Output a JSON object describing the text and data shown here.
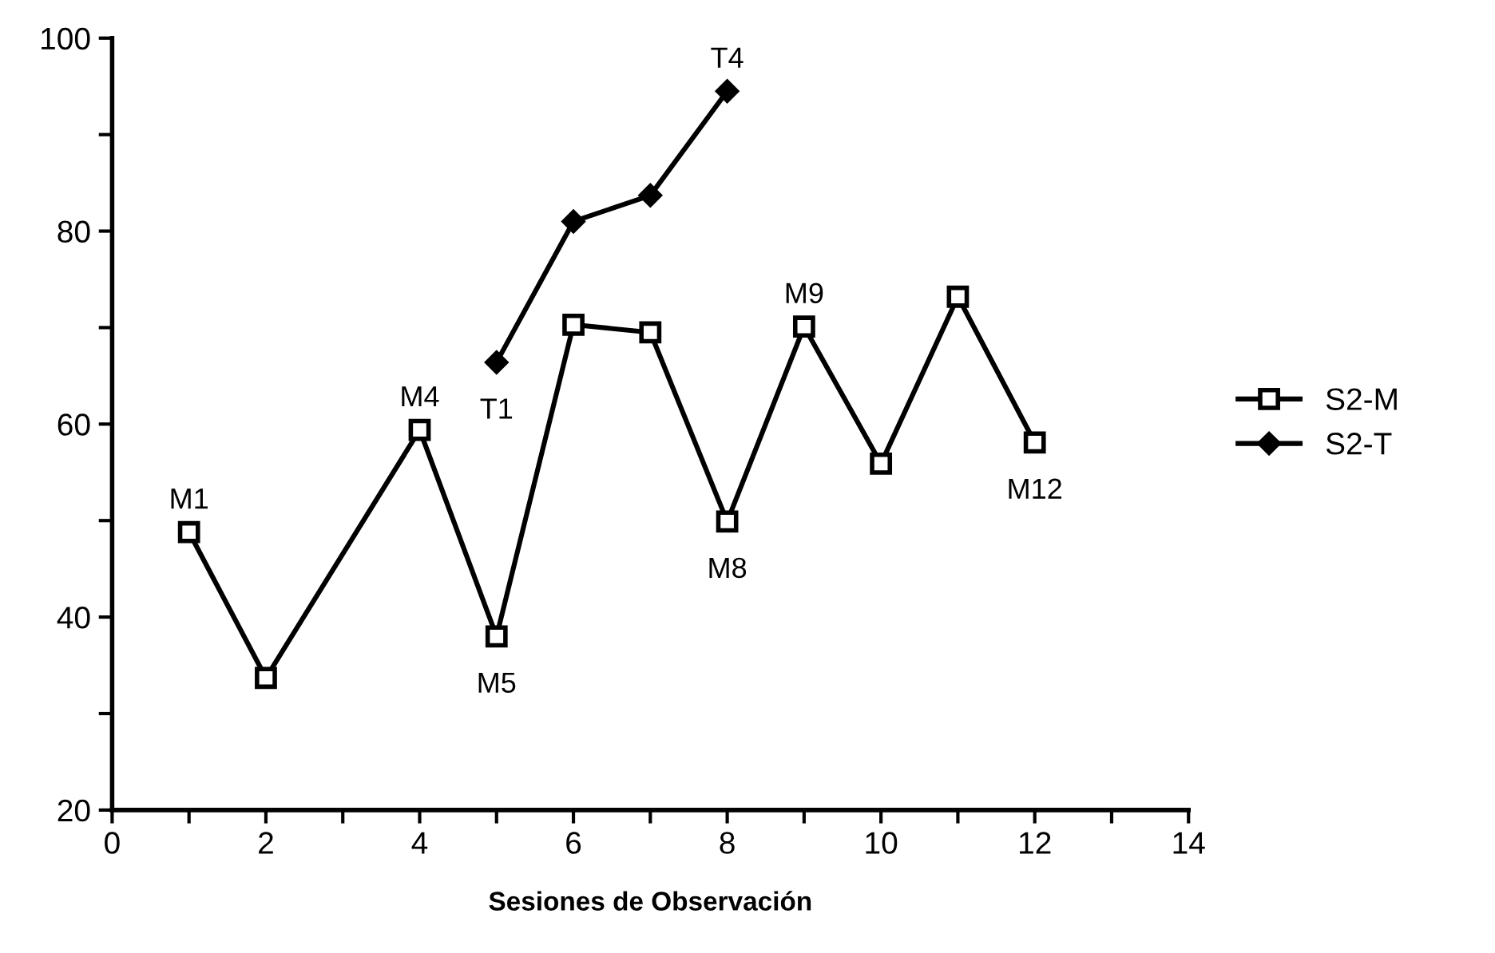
{
  "chart_data": {
    "type": "line",
    "xlabel": "Sesiones de Observación",
    "xlim": [
      0,
      14
    ],
    "ylim": [
      20,
      100
    ],
    "xticks": [
      0,
      {
        "value": 1,
        "label": null
      },
      2,
      {
        "value": 3,
        "label": null
      },
      4,
      {
        "value": 5,
        "label": null
      },
      6,
      {
        "value": 7,
        "label": null
      },
      8,
      {
        "value": 9,
        "label": null
      },
      10,
      {
        "value": 11,
        "label": null
      },
      12,
      {
        "value": 13,
        "label": null
      },
      14
    ],
    "yticks": [
      20,
      {
        "value": 30,
        "label": null
      },
      40,
      {
        "value": 50,
        "label": null
      },
      60,
      {
        "value": 70,
        "label": null
      },
      80,
      {
        "value": 90,
        "label": null
      },
      100
    ],
    "grid": false,
    "legend": "right",
    "line_style": "solid",
    "series": [
      {
        "name": "S2-M",
        "color": "#000000",
        "marker": "square",
        "x": [
          1,
          2,
          4,
          5,
          6,
          7,
          8,
          9,
          10,
          11,
          12
        ],
        "values": [
          48.8,
          33.7,
          59.4,
          38.0,
          70.3,
          69.5,
          49.9,
          70.1,
          55.9,
          73.2,
          58.1
        ]
      },
      {
        "name": "S2-T",
        "color": "#000000",
        "marker": "diamond",
        "x": [
          5,
          6,
          7,
          8
        ],
        "values": [
          66.4,
          81.0,
          83.7,
          94.5
        ]
      }
    ],
    "annotations": [
      {
        "text": "M1",
        "x": 1,
        "y": 48.8
      },
      {
        "text": "M4",
        "x": 4,
        "y": 59.4
      },
      {
        "text": "M5",
        "x": 5,
        "y": 38.0
      },
      {
        "text": "M8",
        "x": 8,
        "y": 49.9
      },
      {
        "text": "M9",
        "x": 9,
        "y": 70.1
      },
      {
        "text": "M12",
        "x": 12,
        "y": 58.1
      },
      {
        "text": "T1",
        "x": 5,
        "y": 66.4
      },
      {
        "text": "T4",
        "x": 8,
        "y": 94.5
      }
    ]
  }
}
